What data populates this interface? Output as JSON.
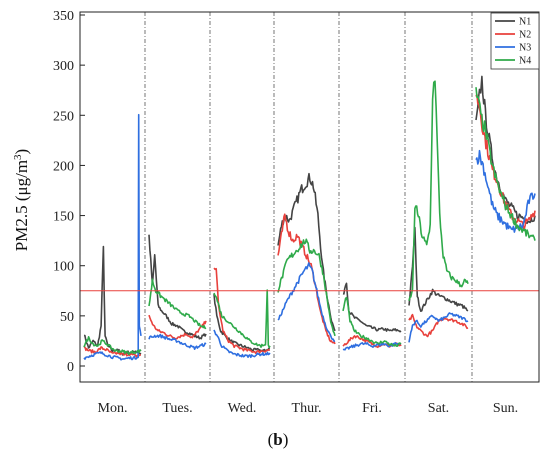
{
  "chart_data": {
    "type": "line",
    "ylabel_main": "PM2.5 (μg/m",
    "ylabel_unit_close": ")",
    "ylabel_sup": "3",
    "caption_open": "(",
    "caption_letter": "b",
    "caption_close": ")",
    "ylim": [
      0,
      350
    ],
    "yticks": [
      0,
      50,
      100,
      150,
      200,
      250,
      300,
      350
    ],
    "categories": [
      "Mon.",
      "Tues.",
      "Wed.",
      "Thur.",
      "Fri.",
      "Sat.",
      "Sun."
    ],
    "threshold": {
      "value": 75,
      "color": "#e8413c"
    },
    "legend_position": "top-right",
    "grid": false,
    "series": [
      {
        "name": "N1",
        "color": "#444444",
        "segments": [
          [
            0.0,
            32,
            0.08,
            18,
            0.16,
            25,
            0.24,
            20,
            0.3,
            40,
            0.34,
            117,
            0.37,
            30,
            0.42,
            20,
            0.5,
            15,
            0.58,
            17,
            0.66,
            12,
            0.74,
            14,
            0.82,
            13,
            0.9,
            15,
            1.0,
            12
          ],
          [
            0.0,
            130,
            0.06,
            80,
            0.1,
            110,
            0.16,
            60,
            0.22,
            55,
            0.3,
            50,
            0.4,
            42,
            0.5,
            40,
            0.6,
            35,
            0.7,
            33,
            0.8,
            30,
            0.9,
            28,
            1.0,
            32
          ],
          [
            0.0,
            70,
            0.05,
            50,
            0.12,
            35,
            0.2,
            30,
            0.3,
            25,
            0.4,
            22,
            0.5,
            20,
            0.6,
            18,
            0.7,
            16,
            0.8,
            16,
            0.9,
            15,
            1.0,
            18
          ],
          [
            0.0,
            120,
            0.06,
            140,
            0.12,
            150,
            0.2,
            145,
            0.3,
            160,
            0.4,
            175,
            0.48,
            182,
            0.56,
            188,
            0.62,
            180,
            0.7,
            150,
            0.78,
            100,
            0.86,
            70,
            0.94,
            45,
            1.0,
            35
          ],
          [
            0.0,
            70,
            0.06,
            85,
            0.1,
            55,
            0.2,
            48,
            0.3,
            45,
            0.4,
            40,
            0.5,
            38,
            0.6,
            36,
            0.7,
            37,
            0.8,
            35,
            0.9,
            36,
            1.0,
            35
          ],
          [
            0.0,
            60,
            0.06,
            100,
            0.1,
            135,
            0.14,
            70,
            0.2,
            55,
            0.3,
            65,
            0.4,
            75,
            0.5,
            70,
            0.6,
            68,
            0.7,
            65,
            0.8,
            62,
            0.9,
            60,
            1.0,
            55
          ],
          [
            0.0,
            240,
            0.06,
            270,
            0.1,
            285,
            0.16,
            250,
            0.24,
            220,
            0.32,
            195,
            0.4,
            180,
            0.5,
            165,
            0.6,
            158,
            0.7,
            150,
            0.8,
            148,
            0.9,
            145,
            1.0,
            150
          ]
        ]
      },
      {
        "name": "N2",
        "color": "#e8413c",
        "segments": [
          [
            0.0,
            18,
            0.1,
            15,
            0.2,
            14,
            0.3,
            18,
            0.4,
            16,
            0.5,
            12,
            0.6,
            13,
            0.7,
            11,
            0.8,
            12,
            0.9,
            10,
            1.0,
            11
          ],
          [
            0.0,
            50,
            0.08,
            40,
            0.16,
            35,
            0.26,
            33,
            0.36,
            30,
            0.46,
            28,
            0.56,
            30,
            0.66,
            32,
            0.76,
            28,
            0.86,
            35,
            0.94,
            40,
            1.0,
            45
          ],
          [
            0.0,
            100,
            0.04,
            95,
            0.08,
            60,
            0.16,
            35,
            0.26,
            25,
            0.36,
            20,
            0.46,
            18,
            0.56,
            16,
            0.66,
            15,
            0.76,
            14,
            0.86,
            15,
            1.0,
            16
          ],
          [
            0.0,
            110,
            0.06,
            130,
            0.12,
            150,
            0.18,
            135,
            0.26,
            125,
            0.34,
            130,
            0.42,
            120,
            0.5,
            110,
            0.58,
            100,
            0.66,
            80,
            0.74,
            55,
            0.84,
            35,
            0.92,
            25,
            1.0,
            22
          ],
          [
            0.0,
            20,
            0.1,
            25,
            0.2,
            30,
            0.3,
            28,
            0.4,
            25,
            0.5,
            22,
            0.6,
            20,
            0.7,
            22,
            0.8,
            20,
            0.9,
            22,
            1.0,
            20
          ],
          [
            0.0,
            45,
            0.06,
            50,
            0.12,
            40,
            0.2,
            35,
            0.3,
            30,
            0.4,
            35,
            0.5,
            45,
            0.6,
            48,
            0.7,
            46,
            0.8,
            45,
            0.9,
            42,
            1.0,
            38
          ],
          [
            0.0,
            270,
            0.06,
            260,
            0.12,
            235,
            0.2,
            215,
            0.28,
            195,
            0.36,
            185,
            0.44,
            170,
            0.52,
            160,
            0.6,
            150,
            0.7,
            145,
            0.8,
            140,
            0.9,
            145,
            1.0,
            155
          ]
        ]
      },
      {
        "name": "N3",
        "color": "#2f6fe0",
        "segments": [
          [
            0.0,
            8,
            0.1,
            10,
            0.2,
            12,
            0.3,
            13,
            0.4,
            11,
            0.5,
            9,
            0.6,
            8,
            0.7,
            7,
            0.8,
            8,
            0.9,
            8,
            0.95,
            10,
            0.96,
            248,
            0.97,
            40,
            1.0,
            30
          ],
          [
            0.0,
            28,
            0.1,
            30,
            0.2,
            30,
            0.3,
            28,
            0.4,
            26,
            0.5,
            25,
            0.6,
            22,
            0.7,
            20,
            0.8,
            18,
            0.9,
            20,
            1.0,
            22
          ],
          [
            0.0,
            35,
            0.06,
            30,
            0.14,
            20,
            0.24,
            15,
            0.34,
            12,
            0.44,
            11,
            0.54,
            10,
            0.64,
            10,
            0.74,
            11,
            0.84,
            12,
            0.94,
            12,
            1.0,
            13
          ],
          [
            0.0,
            45,
            0.08,
            55,
            0.16,
            65,
            0.26,
            75,
            0.36,
            85,
            0.46,
            95,
            0.54,
            100,
            0.6,
            95,
            0.68,
            75,
            0.76,
            55,
            0.84,
            40,
            0.92,
            30,
            1.0,
            25
          ],
          [
            0.0,
            15,
            0.1,
            18,
            0.2,
            20,
            0.3,
            22,
            0.4,
            22,
            0.5,
            20,
            0.6,
            21,
            0.7,
            22,
            0.8,
            20,
            0.9,
            22,
            1.0,
            22
          ],
          [
            0.0,
            25,
            0.06,
            40,
            0.12,
            45,
            0.2,
            40,
            0.3,
            45,
            0.4,
            50,
            0.5,
            45,
            0.6,
            48,
            0.7,
            52,
            0.8,
            50,
            0.9,
            48,
            1.0,
            45
          ],
          [
            0.0,
            205,
            0.06,
            210,
            0.12,
            200,
            0.2,
            180,
            0.28,
            160,
            0.36,
            150,
            0.44,
            145,
            0.52,
            140,
            0.6,
            135,
            0.7,
            138,
            0.8,
            140,
            0.9,
            165,
            1.0,
            172
          ]
        ]
      },
      {
        "name": "N4",
        "color": "#2faa4a",
        "segments": [
          [
            0.0,
            20,
            0.08,
            28,
            0.16,
            22,
            0.24,
            20,
            0.32,
            25,
            0.4,
            22,
            0.48,
            18,
            0.56,
            15,
            0.64,
            15,
            0.72,
            14,
            0.8,
            13,
            0.88,
            14,
            1.0,
            15
          ],
          [
            0.0,
            60,
            0.06,
            85,
            0.12,
            75,
            0.2,
            70,
            0.3,
            65,
            0.4,
            60,
            0.5,
            55,
            0.6,
            52,
            0.7,
            50,
            0.8,
            45,
            0.9,
            40,
            1.0,
            38
          ],
          [
            0.0,
            75,
            0.06,
            65,
            0.14,
            50,
            0.24,
            45,
            0.34,
            40,
            0.44,
            35,
            0.54,
            30,
            0.64,
            25,
            0.74,
            22,
            0.84,
            20,
            0.92,
            22,
            0.95,
            75,
            0.97,
            20,
            1.0,
            20
          ],
          [
            0.0,
            75,
            0.08,
            90,
            0.16,
            105,
            0.24,
            110,
            0.32,
            115,
            0.4,
            120,
            0.48,
            125,
            0.56,
            115,
            0.64,
            115,
            0.72,
            110,
            0.8,
            90,
            0.88,
            60,
            0.94,
            40,
            1.0,
            30
          ],
          [
            0.0,
            55,
            0.06,
            70,
            0.12,
            45,
            0.2,
            35,
            0.3,
            30,
            0.4,
            28,
            0.5,
            25,
            0.6,
            22,
            0.7,
            25,
            0.8,
            22,
            0.9,
            20,
            1.0,
            22
          ],
          [
            0.0,
            65,
            0.06,
            75,
            0.1,
            160,
            0.16,
            150,
            0.22,
            130,
            0.3,
            120,
            0.36,
            140,
            0.4,
            270,
            0.44,
            290,
            0.48,
            220,
            0.52,
            150,
            0.58,
            110,
            0.64,
            95,
            0.72,
            88,
            0.8,
            85,
            0.88,
            80,
            0.94,
            85,
            1.0,
            82
          ],
          [
            0.0,
            275,
            0.05,
            260,
            0.1,
            245,
            0.16,
            235,
            0.24,
            210,
            0.32,
            190,
            0.4,
            175,
            0.5,
            160,
            0.6,
            150,
            0.7,
            140,
            0.8,
            135,
            0.9,
            130,
            1.0,
            125
          ]
        ]
      }
    ]
  }
}
